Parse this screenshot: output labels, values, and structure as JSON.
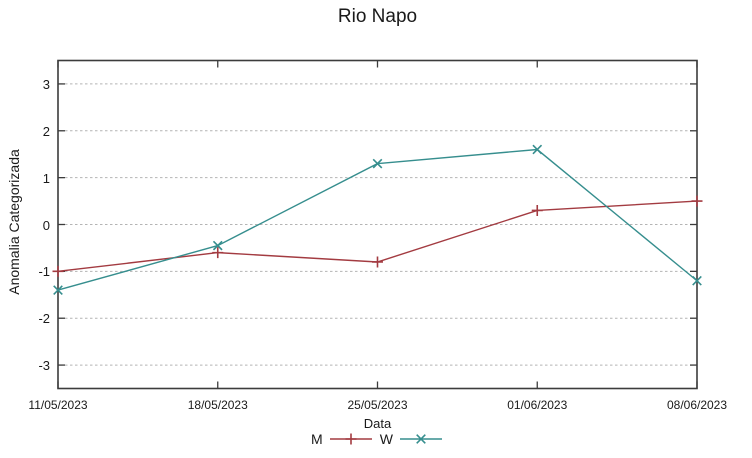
{
  "chart_data": {
    "type": "line",
    "title": "Rio Napo",
    "xlabel": "Data",
    "ylabel": "Anomalia Categorizada",
    "categories": [
      "11/05/2023",
      "18/05/2023",
      "25/05/2023",
      "01/06/2023",
      "08/06/2023"
    ],
    "series": [
      {
        "name": "M",
        "color": "#a33b41",
        "marker": "plus",
        "values": [
          -1.0,
          -0.6,
          -0.8,
          0.3,
          0.5
        ]
      },
      {
        "name": "W",
        "color": "#368e8e",
        "marker": "cross",
        "values": [
          -1.4,
          -0.45,
          1.3,
          1.6,
          -1.2
        ]
      }
    ],
    "ylim": [
      -3.5,
      3.5
    ],
    "yticks": [
      -3,
      -2,
      -1,
      0,
      1,
      2,
      3
    ],
    "grid": "horizontal-dashed",
    "legend_position": "bottom-center"
  },
  "colors": {
    "background": "#ffffff",
    "grid": "#b4b4b4",
    "axis": "#3c3c3c",
    "text": "#1a1a1a"
  }
}
